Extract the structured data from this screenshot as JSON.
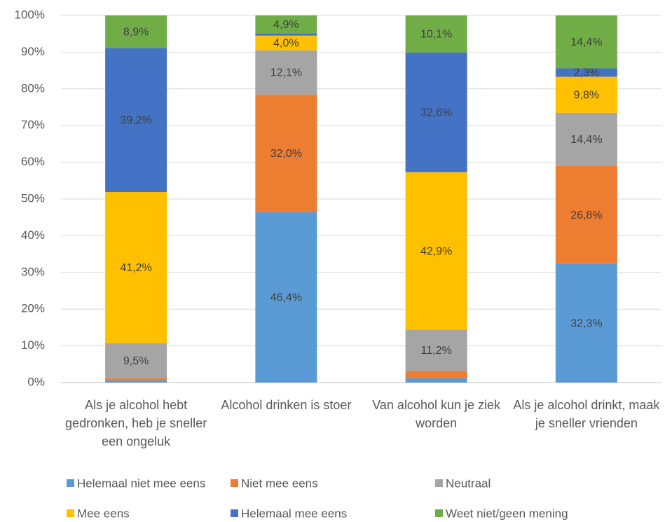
{
  "chart_data": {
    "type": "stacked_bar",
    "categories": [
      "Als je alcohol hebt gedronken, heb je sneller een ongeluk",
      "Alcohol drinken is stoer",
      "Van alcohol kun je ziek worden",
      "Als je alcohol drinkt, maak je sneller vrienden"
    ],
    "series": [
      {
        "name": "Helemaal niet mee eens",
        "color": "#5b9bd5",
        "values": [
          0.6,
          46.4,
          1.2,
          32.3
        ],
        "value_labels": [
          null,
          "46,4%",
          null,
          "32,3%"
        ]
      },
      {
        "name": "Niet mee eens",
        "color": "#ed7d31",
        "values": [
          0.6,
          32.0,
          2.0,
          26.8
        ],
        "value_labels": [
          null,
          "32,0%",
          null,
          "26,8%"
        ]
      },
      {
        "name": "Neutraal",
        "color": "#a5a5a5",
        "values": [
          9.5,
          12.1,
          11.2,
          14.4
        ],
        "value_labels": [
          "9,5%",
          "12,1%",
          "11,2%",
          "14,4%"
        ]
      },
      {
        "name": "Mee eens",
        "color": "#ffc000",
        "values": [
          41.2,
          4.0,
          42.9,
          9.8
        ],
        "value_labels": [
          "41,2%",
          "4,0%",
          "42,9%",
          "9,8%"
        ]
      },
      {
        "name": "Helemaal mee eens",
        "color": "#4472c4",
        "values": [
          39.2,
          0.6,
          32.6,
          2.3
        ],
        "value_labels": [
          "39,2%",
          null,
          "32,6%",
          "2,3%"
        ]
      },
      {
        "name": "Weet niet/geen mening",
        "color": "#70ad47",
        "values": [
          8.9,
          4.9,
          10.1,
          14.4
        ],
        "value_labels": [
          "8,9%",
          "4,9%",
          "10,1%",
          "14,4%"
        ]
      }
    ],
    "ylim": [
      0,
      100
    ],
    "yticks": [
      {
        "value": 0,
        "label": "0%"
      },
      {
        "value": 10,
        "label": "10%"
      },
      {
        "value": 20,
        "label": "20%"
      },
      {
        "value": 30,
        "label": "30%"
      },
      {
        "value": 40,
        "label": "40%"
      },
      {
        "value": 50,
        "label": "50%"
      },
      {
        "value": 60,
        "label": "60%"
      },
      {
        "value": 70,
        "label": "70%"
      },
      {
        "value": 80,
        "label": "80%"
      },
      {
        "value": 90,
        "label": "90%"
      },
      {
        "value": 100,
        "label": "100%"
      }
    ],
    "grid": true,
    "legend": "bottom"
  }
}
